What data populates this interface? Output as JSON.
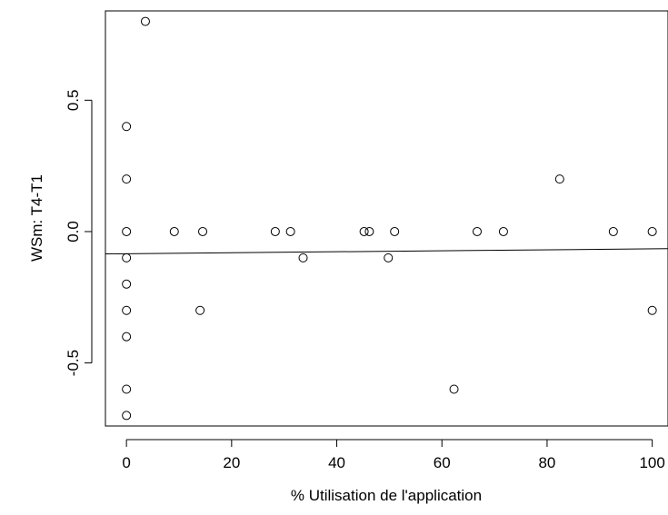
{
  "chart_data": {
    "type": "scatter",
    "title": "",
    "xlabel": "% Utilisation de l'application",
    "ylabel": "WSm: T4-T1",
    "xlim": [
      -4,
      103
    ],
    "ylim": [
      -0.74,
      0.84
    ],
    "xticks": [
      0,
      20,
      40,
      60,
      80,
      100
    ],
    "yticks": [
      -0.5,
      0.0,
      0.5
    ],
    "ytick_labels": [
      "-0.5",
      "0.0",
      "0.5"
    ],
    "grid": false,
    "marker": "open-circle",
    "points": [
      {
        "x": 3.6,
        "y": 0.8
      },
      {
        "x": 0,
        "y": 0.4
      },
      {
        "x": 0,
        "y": 0.2
      },
      {
        "x": 0,
        "y": 0.0
      },
      {
        "x": 0,
        "y": -0.1
      },
      {
        "x": 0,
        "y": -0.2
      },
      {
        "x": 0,
        "y": -0.3
      },
      {
        "x": 0,
        "y": -0.4
      },
      {
        "x": 0,
        "y": -0.6
      },
      {
        "x": 0,
        "y": -0.7
      },
      {
        "x": 9.1,
        "y": 0.0
      },
      {
        "x": 14.5,
        "y": 0.0
      },
      {
        "x": 14.0,
        "y": -0.3
      },
      {
        "x": 28.3,
        "y": 0.0
      },
      {
        "x": 31.2,
        "y": 0.0
      },
      {
        "x": 33.6,
        "y": -0.1
      },
      {
        "x": 45.2,
        "y": 0.0
      },
      {
        "x": 46.2,
        "y": 0.0
      },
      {
        "x": 49.8,
        "y": -0.1
      },
      {
        "x": 51.0,
        "y": 0.0
      },
      {
        "x": 62.3,
        "y": -0.6
      },
      {
        "x": 66.7,
        "y": 0.0
      },
      {
        "x": 71.7,
        "y": 0.0
      },
      {
        "x": 82.4,
        "y": 0.2
      },
      {
        "x": 92.6,
        "y": 0.0
      },
      {
        "x": 100,
        "y": 0.0
      },
      {
        "x": 100,
        "y": -0.3
      }
    ],
    "regression_line": {
      "x": [
        -4,
        103
      ],
      "y": [
        -0.085,
        -0.065
      ]
    }
  }
}
